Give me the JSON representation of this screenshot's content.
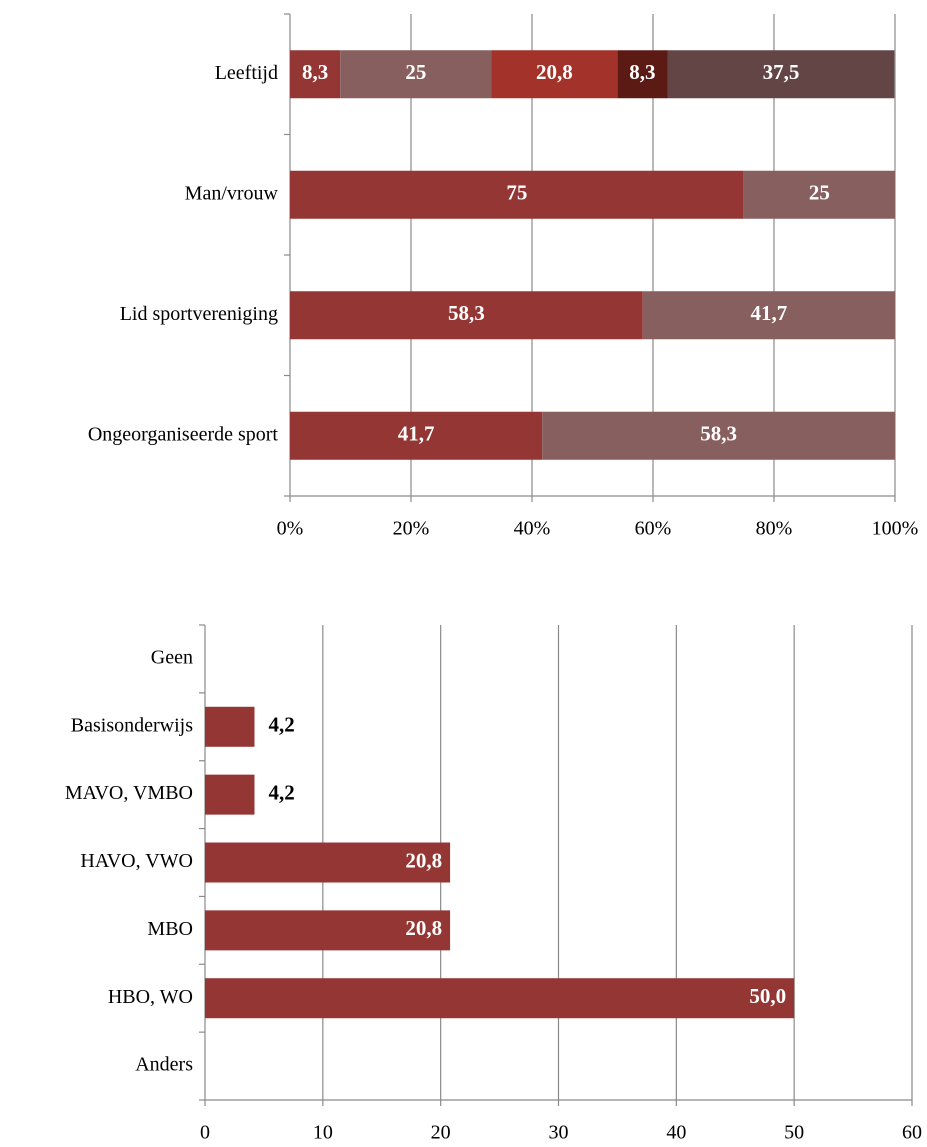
{
  "chart_data": [
    {
      "type": "stacked-bar-horizontal",
      "categories": [
        "Leeftijd",
        "Man/vrouw",
        "Lid sportvereniging",
        "Ongeorganiseerde sport"
      ],
      "series": [
        {
          "color": "#943634",
          "values": [
            8.3,
            75,
            58.3,
            41.7
          ],
          "value_labels": [
            "8,3",
            "75",
            "58,3",
            "41,7"
          ]
        },
        {
          "color": "#865f5e",
          "values": [
            25,
            25,
            41.7,
            58.3
          ],
          "value_labels": [
            "25",
            "25",
            "41,7",
            "58,3"
          ]
        },
        {
          "color": "#a2322a",
          "values": [
            20.8,
            null,
            null,
            null
          ],
          "value_labels": [
            "20,8",
            null,
            null,
            null
          ]
        },
        {
          "color": "#5c1a14",
          "values": [
            8.3,
            null,
            null,
            null
          ],
          "value_labels": [
            "8,3",
            null,
            null,
            null
          ]
        },
        {
          "color": "#634546",
          "values": [
            37.5,
            null,
            null,
            null
          ],
          "value_labels": [
            "37,5",
            null,
            null,
            null
          ]
        }
      ],
      "xlim": [
        0,
        100
      ],
      "xticks": [
        {
          "value": 0,
          "label": "0%"
        },
        {
          "value": 20,
          "label": "20%"
        },
        {
          "value": 40,
          "label": "40%"
        },
        {
          "value": 60,
          "label": "60%"
        },
        {
          "value": 80,
          "label": "80%"
        },
        {
          "value": 100,
          "label": "100%"
        }
      ],
      "grid": true
    },
    {
      "type": "bar-horizontal",
      "categories": [
        "Geen",
        "Basisonderwijs",
        "MAVO, VMBO",
        "HAVO, VWO",
        "MBO",
        "HBO, WO",
        "Anders"
      ],
      "values": [
        null,
        4.2,
        4.2,
        20.8,
        20.8,
        50.0,
        null
      ],
      "value_labels": [
        null,
        "4,2",
        "4,2",
        "20,8",
        "20,8",
        "50,0",
        null
      ],
      "color": "#943634",
      "xlim": [
        0,
        60
      ],
      "xticks": [
        0,
        10,
        20,
        30,
        40,
        50,
        60
      ],
      "grid": true
    }
  ]
}
